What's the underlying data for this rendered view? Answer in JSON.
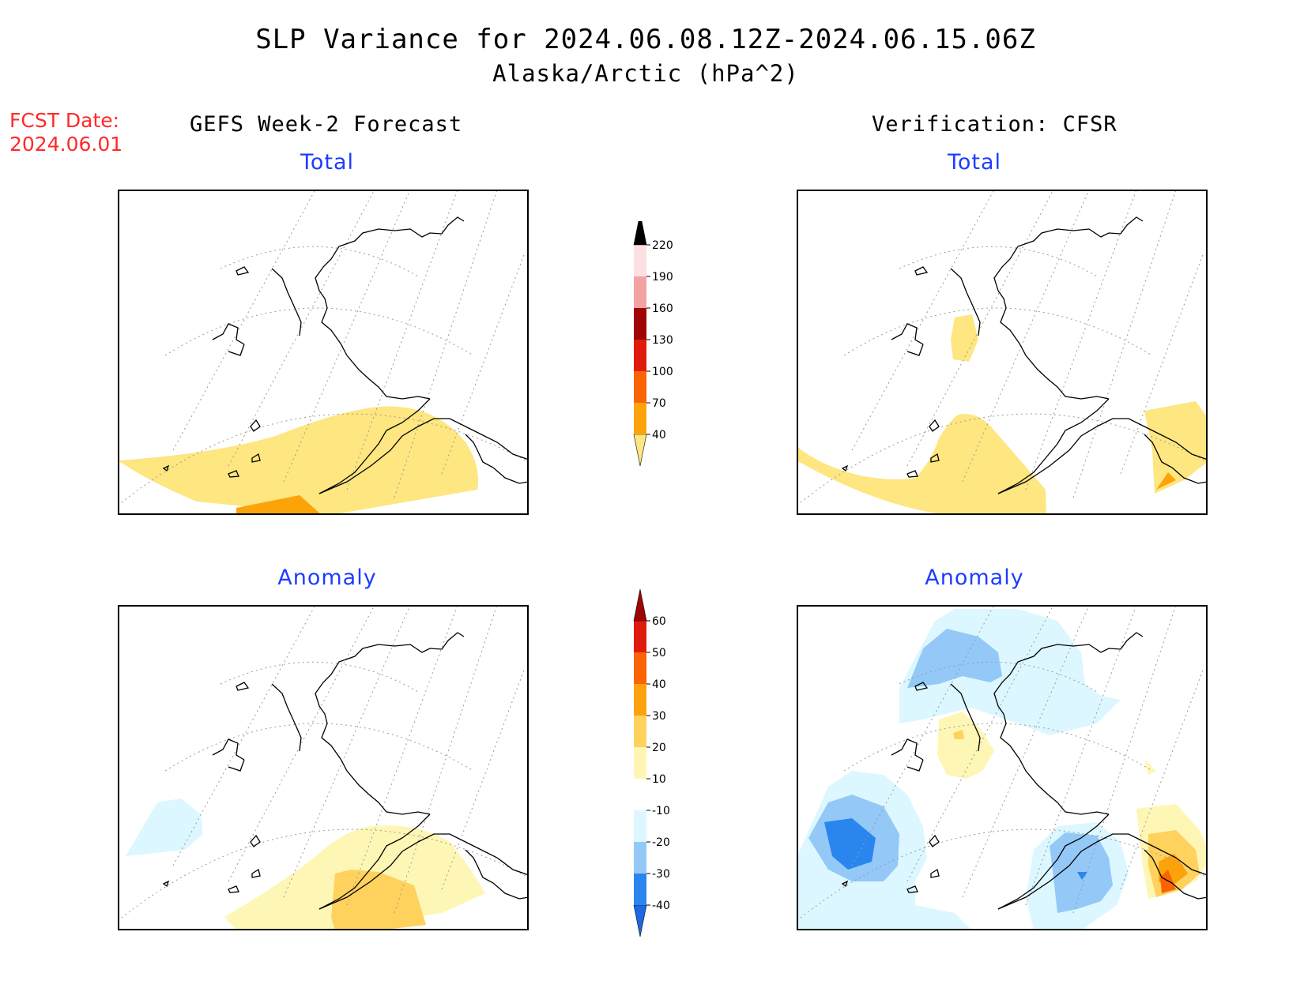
{
  "title": "SLP Variance for 2024.06.08.12Z-2024.06.15.06Z",
  "subtitle": "Alaska/Arctic (hPa^2)",
  "fcst": {
    "label": "FCST Date:",
    "date": "2024.06.01"
  },
  "columns": {
    "left": "GEFS Week-2 Forecast",
    "right": "Verification: CFSR"
  },
  "panels": {
    "forecast_total": "Total",
    "verification_total": "Total",
    "forecast_anomaly": "Anomaly",
    "verification_anomaly": "Anomaly"
  },
  "colorbars": {
    "total": {
      "levels": [
        "40",
        "70",
        "100",
        "130",
        "160",
        "190",
        "220"
      ],
      "colors": [
        "#fee680",
        "#fca30a",
        "#fa6404",
        "#e01b0c",
        "#a00505",
        "#f4a3a3",
        "#fde1e1"
      ]
    },
    "anomaly": {
      "levels": [
        "-40",
        "-30",
        "-20",
        "-10",
        "10",
        "20",
        "30",
        "40",
        "50",
        "60"
      ],
      "colors": [
        "#1d67e3",
        "#2a85ee",
        "#94c8f7",
        "#dcf7ff",
        "#ffffff",
        "#fef6b4",
        "#fed25c",
        "#fda20d",
        "#fa6404",
        "#e01b0c",
        "#a00505"
      ]
    }
  }
}
